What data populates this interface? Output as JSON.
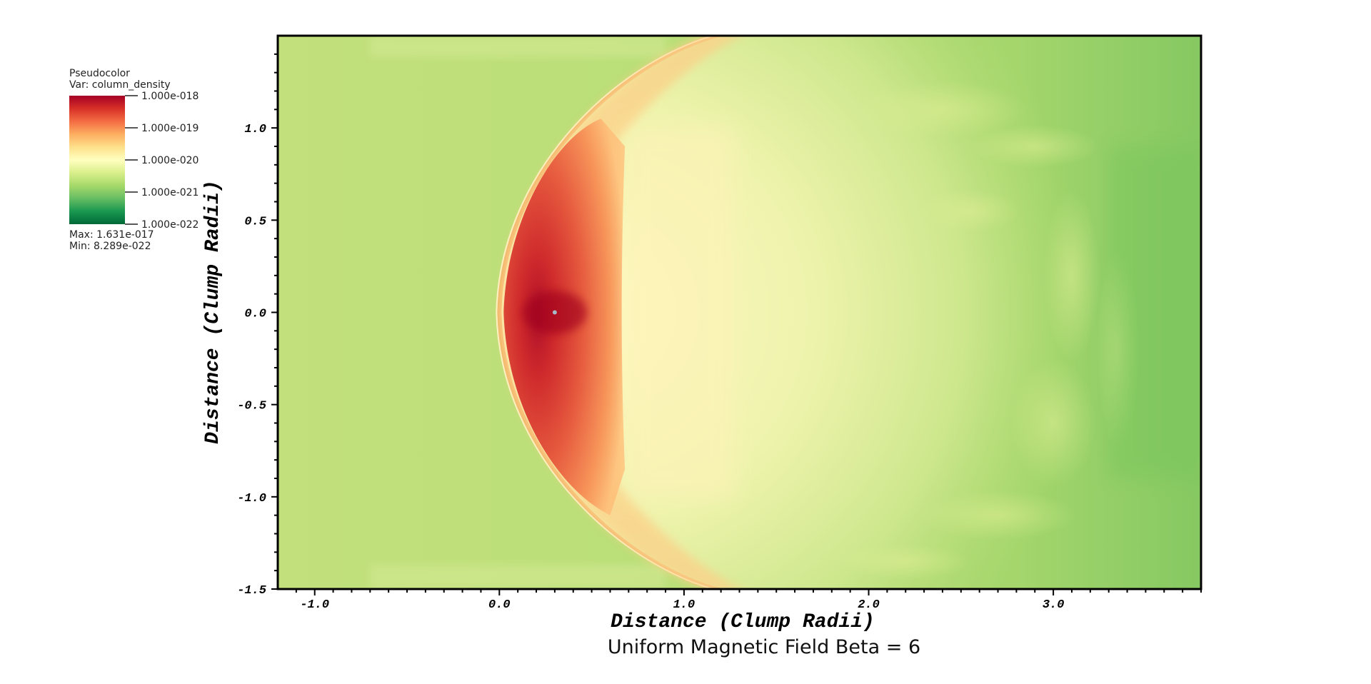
{
  "chart_data": {
    "type": "heatmap",
    "title": "Uniform Magnetic Field Beta = 6",
    "xlabel": "Distance (Clump Radii)",
    "ylabel": "Distance (Clump Radii)",
    "xlim": [
      -1.2,
      3.8
    ],
    "ylim": [
      -1.5,
      1.5
    ],
    "x_ticks": [
      -1.0,
      0.0,
      1.0,
      2.0,
      3.0
    ],
    "x_tick_labels": [
      "-1.0",
      "0.0",
      "1.0",
      "2.0",
      "3.0"
    ],
    "y_ticks": [
      -1.5,
      -1.0,
      -0.5,
      0.0,
      0.5,
      1.0
    ],
    "y_tick_labels": [
      "-1.5",
      "-1.0",
      "-0.5",
      "0.0",
      "0.5",
      "1.0"
    ],
    "x_minor_step": 0.1,
    "y_minor_step": 0.1,
    "colormap": [
      "#006837",
      "#1a9850",
      "#66bd63",
      "#a6d96a",
      "#d9ef8b",
      "#ffffbf",
      "#fee08b",
      "#fdae61",
      "#f46d43",
      "#d73027",
      "#a50026"
    ],
    "background_level_color": "#bfe07a",
    "shock_apex_x": 0.0,
    "clump_center": [
      0.3,
      0.0
    ],
    "dense_region_right_x": 0.68,
    "legend": {
      "plot_type": "Pseudocolor",
      "variable": "Var: column_density",
      "scale_labels": [
        "1.000e-018",
        "1.000e-019",
        "1.000e-020",
        "1.000e-021",
        "1.000e-022"
      ],
      "max_label": "Max:  1.631e-017",
      "min_label": "Min:  8.289e-022"
    }
  }
}
